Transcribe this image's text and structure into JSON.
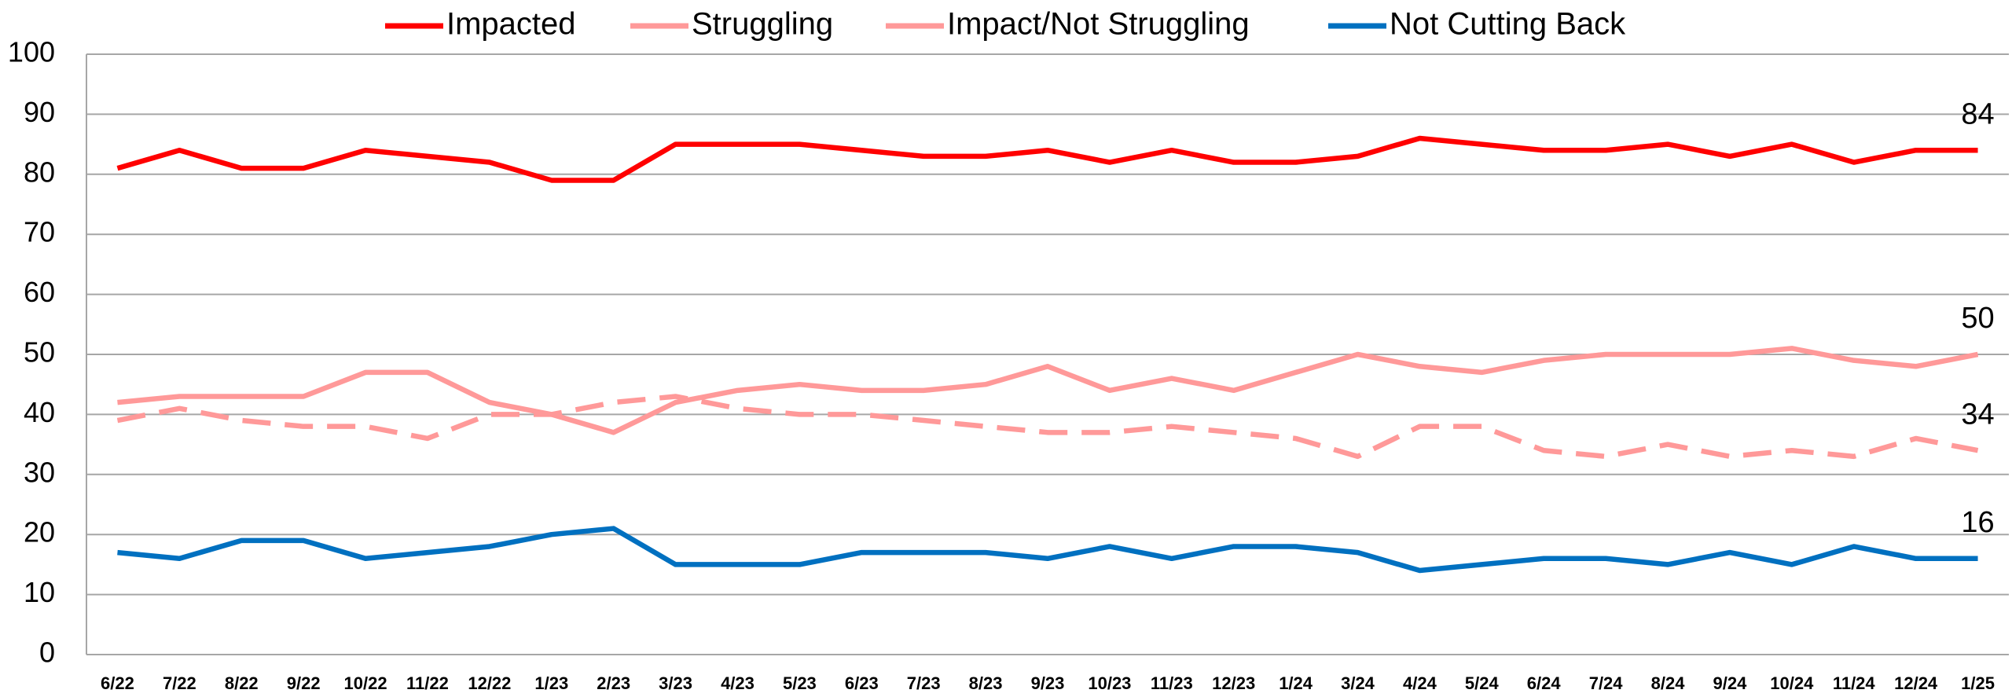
{
  "chart_data": {
    "type": "line",
    "categories": [
      "6/22",
      "7/22",
      "8/22",
      "9/22",
      "10/22",
      "11/22",
      "12/22",
      "1/23",
      "2/23",
      "3/23",
      "4/23",
      "5/23",
      "6/23",
      "7/23",
      "8/23",
      "9/23",
      "10/23",
      "11/23",
      "12/23",
      "1/24",
      "3/24",
      "4/24",
      "5/24",
      "6/24",
      "7/24",
      "8/24",
      "9/24",
      "10/24",
      "11/24",
      "12/24",
      "1/25"
    ],
    "series": [
      {
        "name": "Impacted",
        "color": "#ff0000",
        "values": [
          81,
          84,
          81,
          81,
          84,
          83,
          82,
          79,
          79,
          85,
          85,
          85,
          84,
          83,
          83,
          84,
          82,
          84,
          82,
          82,
          83,
          86,
          85,
          84,
          84,
          85,
          83,
          85,
          82,
          84,
          84
        ]
      },
      {
        "name": "Struggling",
        "color": "#ff9999",
        "values": [
          42,
          43,
          43,
          43,
          47,
          47,
          42,
          40,
          37,
          42,
          44,
          45,
          44,
          44,
          45,
          48,
          44,
          46,
          44,
          47,
          50,
          48,
          47,
          49,
          50,
          50,
          50,
          51,
          49,
          48,
          50
        ]
      },
      {
        "name": "Impact/Not Struggling",
        "color": "#ff9999",
        "dashed": true,
        "values": [
          39,
          41,
          39,
          38,
          38,
          36,
          40,
          40,
          42,
          43,
          41,
          40,
          40,
          39,
          38,
          37,
          37,
          38,
          37,
          36,
          33,
          38,
          38,
          34,
          33,
          35,
          33,
          34,
          33,
          36,
          34
        ]
      },
      {
        "name": "Not Cutting Back",
        "color": "#0070c0",
        "values": [
          17,
          16,
          19,
          19,
          16,
          17,
          18,
          20,
          21,
          15,
          15,
          15,
          17,
          17,
          17,
          16,
          18,
          16,
          18,
          18,
          17,
          14,
          15,
          16,
          16,
          15,
          17,
          15,
          18,
          16,
          16
        ]
      }
    ],
    "ylim": [
      0,
      100
    ],
    "yticks": [
      0,
      10,
      20,
      30,
      40,
      50,
      60,
      70,
      80,
      90,
      100
    ],
    "grid": true,
    "legend": "top"
  }
}
